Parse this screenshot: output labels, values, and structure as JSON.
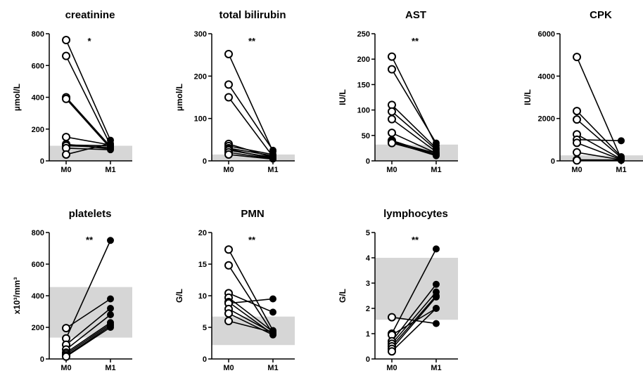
{
  "chart_data": [
    {
      "type": "scatter",
      "title": "creatinine",
      "ylabel": "µmol/L",
      "ylim": [
        0,
        800
      ],
      "yticks": [
        0,
        200,
        400,
        600,
        800
      ],
      "categories": [
        "M0",
        "M1"
      ],
      "significance": "*",
      "reference_range": [
        0,
        95
      ],
      "pairs": [
        [
          760,
          130
        ],
        [
          660,
          100
        ],
        [
          400,
          90
        ],
        [
          390,
          80
        ],
        [
          150,
          100
        ],
        [
          105,
          75
        ],
        [
          100,
          95
        ],
        [
          95,
          85
        ],
        [
          80,
          70
        ],
        [
          40,
          110
        ]
      ]
    },
    {
      "type": "scatter",
      "title": "total bilirubin",
      "ylabel": "µmol/L",
      "ylim": [
        0,
        300
      ],
      "yticks": [
        0,
        100,
        200,
        300
      ],
      "categories": [
        "M0",
        "M1"
      ],
      "significance": "**",
      "reference_range": [
        0,
        15
      ],
      "pairs": [
        [
          252,
          22
        ],
        [
          180,
          25
        ],
        [
          150,
          10
        ],
        [
          40,
          8
        ],
        [
          35,
          15
        ],
        [
          30,
          12
        ],
        [
          28,
          5
        ],
        [
          25,
          8
        ],
        [
          20,
          5
        ],
        [
          15,
          4
        ]
      ]
    },
    {
      "type": "scatter",
      "title": "AST",
      "ylabel": "IU/L",
      "ylim": [
        0,
        250
      ],
      "yticks": [
        0,
        50,
        100,
        150,
        200,
        250
      ],
      "categories": [
        "M0",
        "M1"
      ],
      "significance": "**",
      "reference_range": [
        0,
        32
      ],
      "pairs": [
        [
          205,
          30
        ],
        [
          180,
          35
        ],
        [
          110,
          25
        ],
        [
          97,
          22
        ],
        [
          82,
          18
        ],
        [
          55,
          15
        ],
        [
          40,
          12
        ],
        [
          38,
          15
        ],
        [
          37,
          10
        ],
        [
          35,
          12
        ]
      ]
    },
    {
      "type": "scatter",
      "title": "CPK",
      "ylabel": "IU/L",
      "ylim": [
        0,
        6000
      ],
      "yticks": [
        0,
        2000,
        4000,
        6000
      ],
      "categories": [
        "M0",
        "M1"
      ],
      "significance": "",
      "reference_range": [
        0,
        260
      ],
      "pairs": [
        [
          4900,
          100
        ],
        [
          2350,
          200
        ],
        [
          1950,
          150
        ],
        [
          1250,
          80
        ],
        [
          1000,
          950
        ],
        [
          850,
          60
        ],
        [
          400,
          50
        ],
        [
          50,
          40
        ],
        [
          30,
          30
        ],
        [
          20,
          20
        ]
      ]
    },
    {
      "type": "scatter",
      "title": "platelets",
      "ylabel": "x10³/mm³",
      "ylim": [
        0,
        800
      ],
      "yticks": [
        0,
        200,
        400,
        600,
        800
      ],
      "categories": [
        "M0",
        "M1"
      ],
      "significance": "**",
      "reference_range": [
        135,
        455
      ],
      "pairs": [
        [
          195,
          380
        ],
        [
          130,
          750
        ],
        [
          90,
          320
        ],
        [
          60,
          280
        ],
        [
          40,
          230
        ],
        [
          30,
          220
        ],
        [
          20,
          210
        ],
        [
          15,
          200
        ]
      ]
    },
    {
      "type": "scatter",
      "title": "PMN",
      "ylabel": "G/L",
      "ylim": [
        0,
        20
      ],
      "yticks": [
        0,
        5,
        10,
        15,
        20
      ],
      "categories": [
        "M0",
        "M1"
      ],
      "significance": "**",
      "reference_range": [
        2.2,
        6.7
      ],
      "pairs": [
        [
          17.3,
          4.5
        ],
        [
          14.8,
          4.0
        ],
        [
          10.4,
          7.4
        ],
        [
          9.7,
          4.3
        ],
        [
          9.0,
          3.9
        ],
        [
          8.8,
          9.5
        ],
        [
          7.9,
          4.1
        ],
        [
          7.2,
          3.8
        ],
        [
          6.0,
          4.2
        ]
      ]
    },
    {
      "type": "scatter",
      "title": "lymphocytes",
      "ylabel": "G/L",
      "ylim": [
        0,
        5
      ],
      "yticks": [
        0,
        1,
        2,
        3,
        4,
        5
      ],
      "categories": [
        "M0",
        "M1"
      ],
      "significance": "**",
      "reference_range": [
        1.55,
        4.0
      ],
      "pairs": [
        [
          1.65,
          1.4
        ],
        [
          1.0,
          4.35
        ],
        [
          0.95,
          2.0
        ],
        [
          0.7,
          2.95
        ],
        [
          0.6,
          2.65
        ],
        [
          0.5,
          2.5
        ],
        [
          0.4,
          2.45
        ],
        [
          0.3,
          2.0
        ]
      ]
    }
  ]
}
